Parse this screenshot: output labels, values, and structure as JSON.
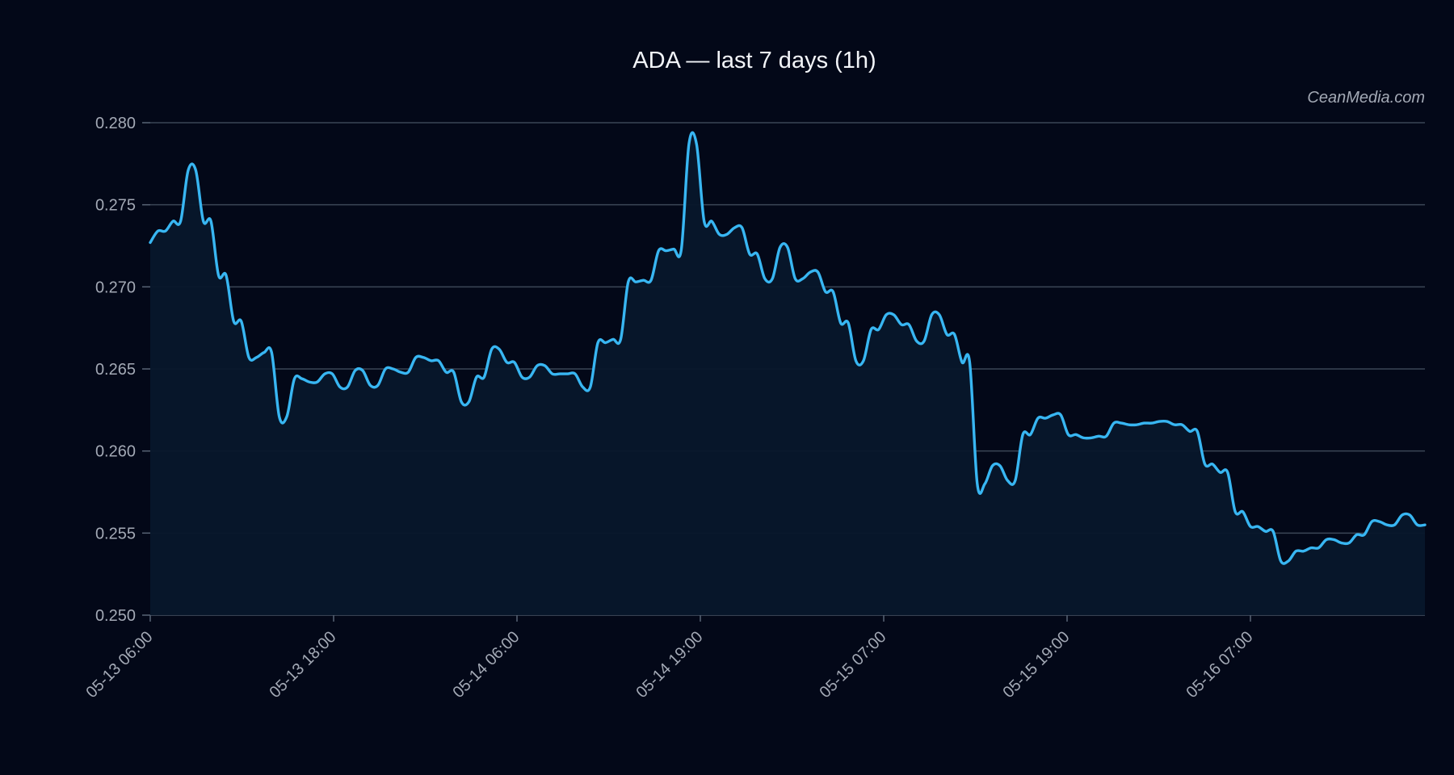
{
  "chart_data": {
    "type": "area",
    "title": "ADA — last 7 days (1h)",
    "watermark": "CeanMedia.com",
    "xlabel": "",
    "ylabel": "",
    "ylim": [
      0.25,
      0.28
    ],
    "yticks": [
      "0.250",
      "0.255",
      "0.260",
      "0.265",
      "0.270",
      "0.275",
      "0.280"
    ],
    "xtick_labels": [
      "05-13 06:00",
      "05-13 18:00",
      "05-14 06:00",
      "05-14 19:00",
      "05-15 07:00",
      "05-15 19:00",
      "05-16 07:00"
    ],
    "grid": true,
    "colors": {
      "line": "#38b6f2",
      "fill": "#07172b",
      "background": "#030818"
    },
    "series": [
      {
        "values": [
          0.2727,
          0.2734,
          0.2734,
          0.274,
          0.274,
          0.2771,
          0.2771,
          0.274,
          0.274,
          0.2707,
          0.2707,
          0.2679,
          0.2679,
          0.2657,
          0.2657,
          0.266,
          0.266,
          0.2621,
          0.2621,
          0.2644,
          0.2644,
          0.2642,
          0.2642,
          0.2647,
          0.2647,
          0.2639,
          0.2639,
          0.2649,
          0.2649,
          0.264,
          0.264,
          0.265,
          0.265,
          0.2648,
          0.2648,
          0.2657,
          0.2657,
          0.2655,
          0.2655,
          0.2648,
          0.2648,
          0.263,
          0.263,
          0.2645,
          0.2645,
          0.2662,
          0.2662,
          0.2654,
          0.2654,
          0.2645,
          0.2645,
          0.2652,
          0.2652,
          0.2647,
          0.2647,
          0.2647,
          0.2647,
          0.2639,
          0.2639,
          0.2666,
          0.2666,
          0.2668,
          0.2668,
          0.2703,
          0.2703,
          0.2704,
          0.2704,
          0.2722,
          0.2722,
          0.2723,
          0.2723,
          0.2787,
          0.2787,
          0.274,
          0.274,
          0.2732,
          0.2732,
          0.2736,
          0.2736,
          0.272,
          0.272,
          0.2705,
          0.2705,
          0.2724,
          0.2724,
          0.2705,
          0.2705,
          0.2709,
          0.2709,
          0.2697,
          0.2697,
          0.2678,
          0.2678,
          0.2655,
          0.2655,
          0.2674,
          0.2674,
          0.2683,
          0.2683,
          0.2677,
          0.2677,
          0.2667,
          0.2667,
          0.2683,
          0.2683,
          0.2671,
          0.2671,
          0.2654,
          0.2654,
          0.258,
          0.258,
          0.2591,
          0.2591,
          0.2582,
          0.2582,
          0.261,
          0.261,
          0.262,
          0.262,
          0.2622,
          0.2622,
          0.261,
          0.261,
          0.2608,
          0.2608,
          0.2609,
          0.2609,
          0.2617,
          0.2617,
          0.2616,
          0.2616,
          0.2617,
          0.2617,
          0.2618,
          0.2618,
          0.2616,
          0.2616,
          0.2612,
          0.2612,
          0.2592,
          0.2592,
          0.2587,
          0.2587,
          0.2563,
          0.2563,
          0.2554,
          0.2554,
          0.2551,
          0.2551,
          0.2533,
          0.2533,
          0.2539,
          0.2539,
          0.2541,
          0.2541,
          0.2546,
          0.2546,
          0.2544,
          0.2544,
          0.2549,
          0.2549,
          0.2557,
          0.2557,
          0.2555,
          0.2555,
          0.2561,
          0.2561,
          0.2555,
          0.2555
        ]
      }
    ]
  }
}
